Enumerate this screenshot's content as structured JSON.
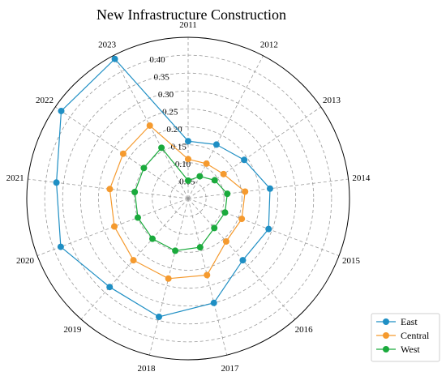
{
  "chart_data": {
    "type": "radar",
    "title": "New Infrastructure Construction",
    "categories": [
      "2011",
      "2012",
      "2013",
      "2014",
      "2015",
      "2016",
      "2017",
      "2018",
      "2019",
      "2020",
      "2021",
      "2022",
      "2023"
    ],
    "radial_ticks": [
      "0.05",
      "0.10",
      "0.15",
      "0.20",
      "0.25",
      "0.30",
      "0.35",
      "0.40"
    ],
    "rlim": [
      0,
      0.45
    ],
    "grid": true,
    "legend_position": "bottom-right",
    "series": [
      {
        "name": "East",
        "color": "#1f8fc4",
        "values": [
          0.16,
          0.17,
          0.19,
          0.23,
          0.24,
          0.23,
          0.3,
          0.34,
          0.33,
          0.38,
          0.37,
          0.43,
          0.44
        ]
      },
      {
        "name": "Central",
        "color": "#f59a2e",
        "values": [
          0.11,
          0.11,
          0.12,
          0.16,
          0.16,
          0.16,
          0.22,
          0.23,
          0.23,
          0.22,
          0.22,
          0.22,
          0.23
        ]
      },
      {
        "name": "West",
        "color": "#1aaa3c",
        "values": [
          0.05,
          0.07,
          0.09,
          0.11,
          0.11,
          0.11,
          0.14,
          0.15,
          0.15,
          0.15,
          0.15,
          0.15,
          0.16
        ]
      }
    ]
  }
}
